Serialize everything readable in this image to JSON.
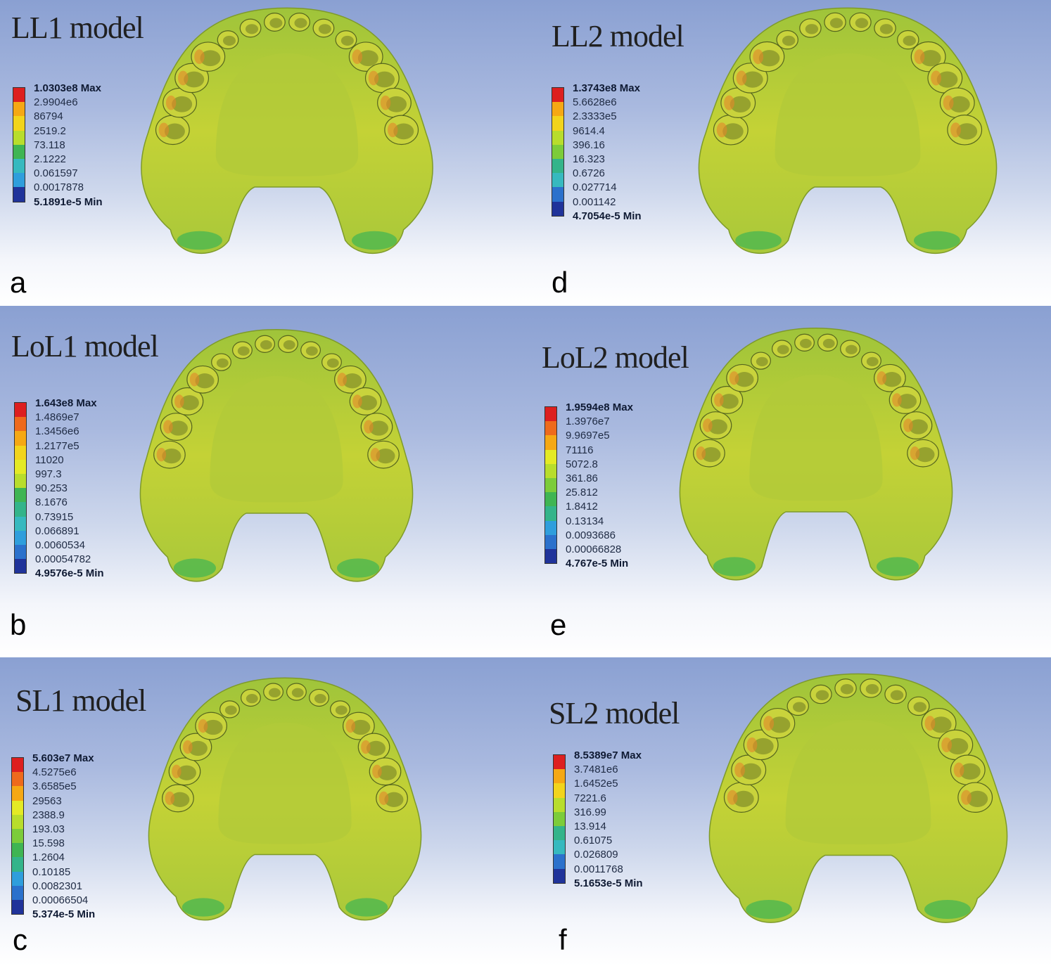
{
  "colormap": [
    "#dd1f1f",
    "#ee6a1c",
    "#f5a814",
    "#f2d41c",
    "#e4ea25",
    "#b8dd2c",
    "#7ccc3a",
    "#3fb553",
    "#33b48a",
    "#36b9bf",
    "#2f9edc",
    "#2b71cc",
    "#20339a",
    "#ffffff"
  ],
  "panels": [
    {
      "id": "a",
      "title": "LL1 model",
      "letter": "a",
      "legend": [
        "1.0303e8 Max",
        "2.9904e6",
        "86794",
        "2519.2",
        "73.118",
        "2.1222",
        "0.061597",
        "0.0017878",
        "5.1891e-5 Min"
      ]
    },
    {
      "id": "d",
      "title": "LL2 model",
      "letter": "d",
      "legend": [
        "1.3743e8 Max",
        "5.6628e6",
        "2.3333e5",
        "9614.4",
        "396.16",
        "16.323",
        "0.6726",
        "0.027714",
        "0.001142",
        "4.7054e-5 Min"
      ]
    },
    {
      "id": "b",
      "title": "LoL1 model",
      "letter": "b",
      "legend": [
        "1.643e8 Max",
        "1.4869e7",
        "1.3456e6",
        "1.2177e5",
        "11020",
        "997.3",
        "90.253",
        "8.1676",
        "0.73915",
        "0.066891",
        "0.0060534",
        "0.00054782",
        "4.9576e-5 Min"
      ]
    },
    {
      "id": "e",
      "title": "LoL2 model",
      "letter": "e",
      "legend": [
        "1.9594e8 Max",
        "1.3976e7",
        "9.9697e5",
        "71116",
        "5072.8",
        "361.86",
        "25.812",
        "1.8412",
        "0.13134",
        "0.0093686",
        "0.00066828",
        "4.767e-5 Min"
      ]
    },
    {
      "id": "c",
      "title": "SL1 model",
      "letter": "c",
      "legend": [
        "5.603e7 Max",
        "4.5275e6",
        "3.6585e5",
        "29563",
        "2388.9",
        "193.03",
        "15.598",
        "1.2604",
        "0.10185",
        "0.0082301",
        "0.00066504",
        "5.374e-5 Min"
      ]
    },
    {
      "id": "f",
      "title": "SL2 model",
      "letter": "f",
      "legend": [
        "8.5389e7 Max",
        "3.7481e6",
        "1.6452e5",
        "7221.6",
        "316.99",
        "13.914",
        "0.61075",
        "0.026809",
        "0.0011768",
        "5.1653e-5 Min"
      ]
    }
  ]
}
